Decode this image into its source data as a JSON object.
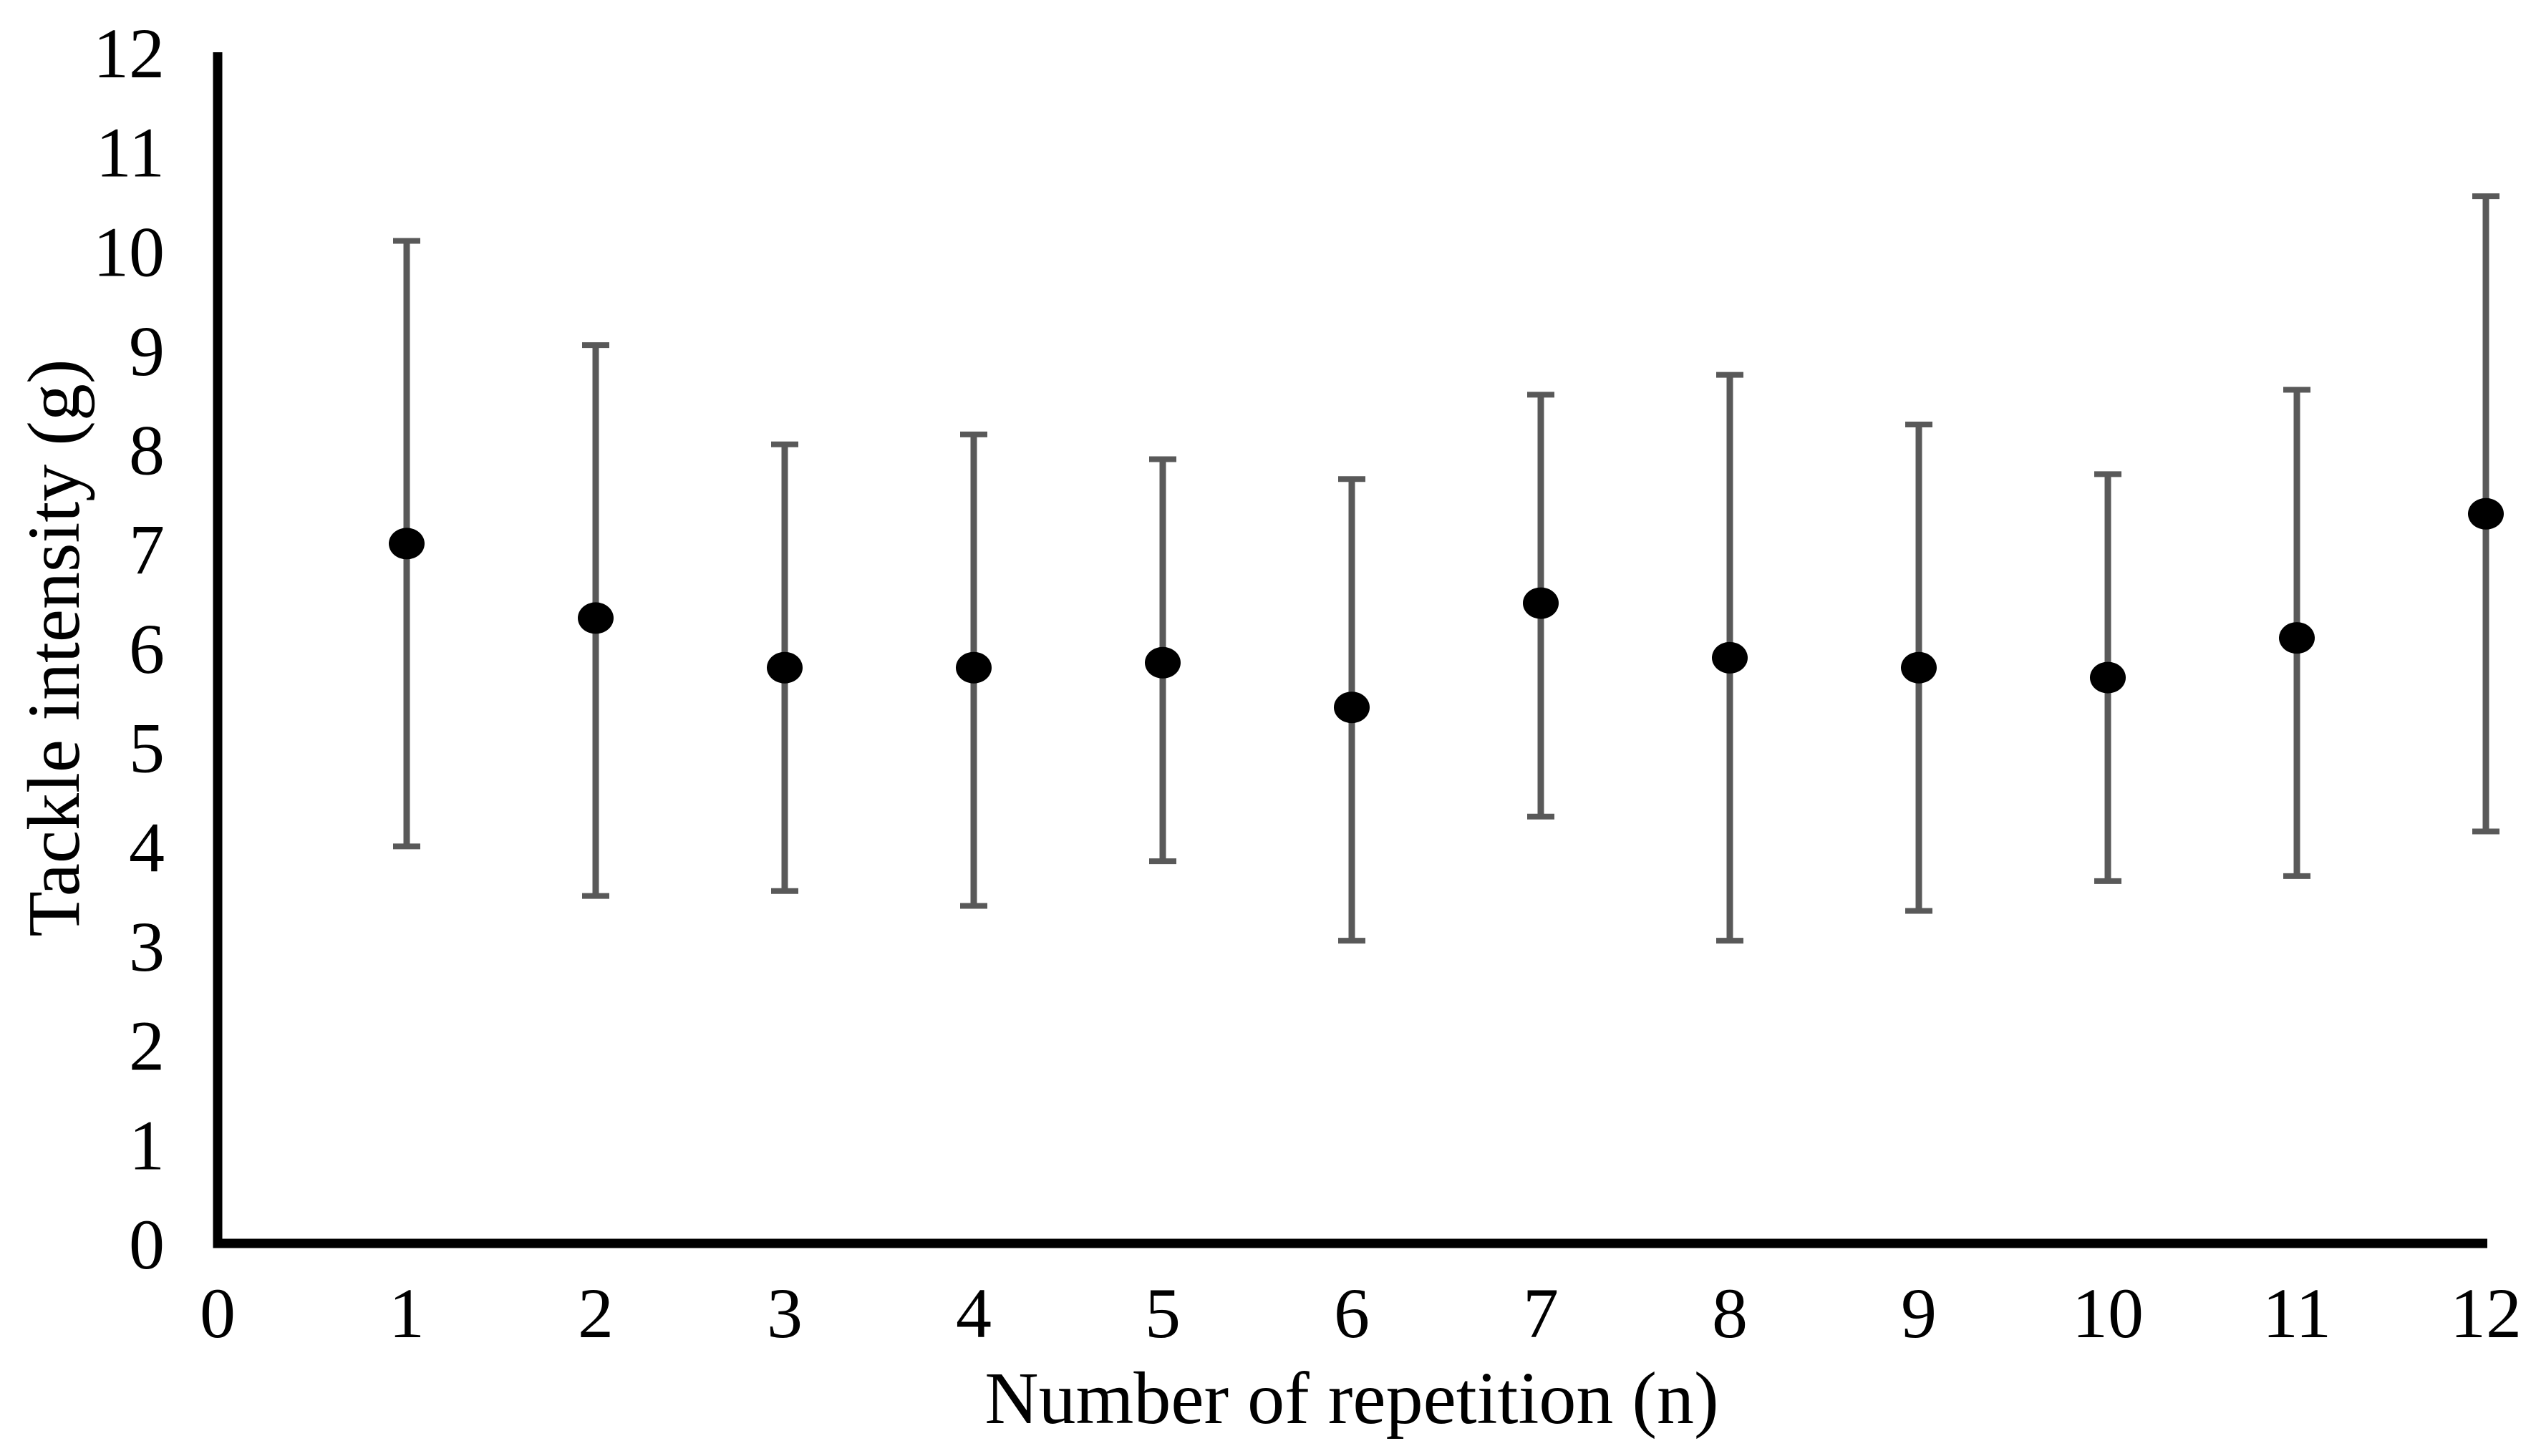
{
  "page": {
    "background": "#ffffff"
  },
  "chart_data": {
    "type": "scatter",
    "title": "",
    "xlabel": "Number of repetition (n)",
    "ylabel": "Tackle intensity (g)",
    "x": [
      1,
      2,
      3,
      4,
      5,
      6,
      7,
      8,
      9,
      10,
      11,
      12
    ],
    "means": [
      7.05,
      6.3,
      5.8,
      5.8,
      5.85,
      5.4,
      6.45,
      5.9,
      5.8,
      5.7,
      6.1,
      7.35
    ],
    "error_lower": [
      4.0,
      3.5,
      3.55,
      3.4,
      3.85,
      3.05,
      4.3,
      3.05,
      3.35,
      3.65,
      3.7,
      4.15
    ],
    "error_upper": [
      10.1,
      9.05,
      8.05,
      8.15,
      7.9,
      7.7,
      8.55,
      8.75,
      8.25,
      7.75,
      8.6,
      10.55
    ],
    "xlim": [
      0,
      12
    ],
    "ylim": [
      0,
      12
    ],
    "x_ticks": [
      0,
      1,
      2,
      3,
      4,
      5,
      6,
      7,
      8,
      9,
      10,
      11,
      12
    ],
    "y_ticks": [
      0,
      1,
      2,
      3,
      4,
      5,
      6,
      7,
      8,
      9,
      10,
      11,
      12
    ],
    "grid": false,
    "legend": false,
    "marker": "circle",
    "marker_color": "#000000",
    "error_bar_color": "#595959",
    "axis_color": "#000000",
    "text_color": "#000000"
  }
}
